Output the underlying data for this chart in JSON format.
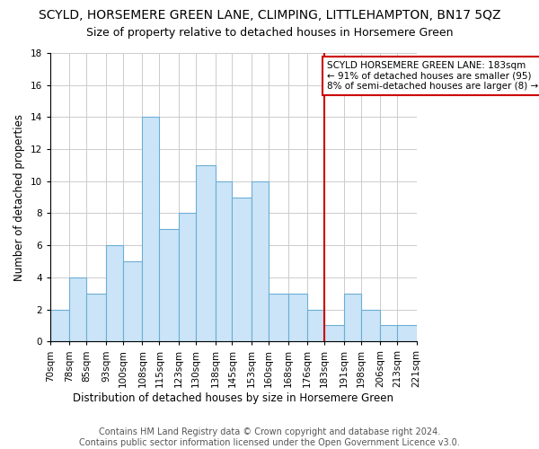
{
  "title": "SCYLD, HORSEMERE GREEN LANE, CLIMPING, LITTLEHAMPTON, BN17 5QZ",
  "subtitle": "Size of property relative to detached houses in Horsemere Green",
  "xlabel": "Distribution of detached houses by size in Horsemere Green",
  "ylabel": "Number of detached properties",
  "footnote1": "Contains HM Land Registry data © Crown copyright and database right 2024.",
  "footnote2": "Contains public sector information licensed under the Open Government Licence v3.0.",
  "bin_edges": [
    70,
    78,
    85,
    93,
    100,
    108,
    115,
    123,
    130,
    138,
    145,
    153,
    160,
    168,
    176,
    183,
    191,
    198,
    206,
    213,
    221
  ],
  "counts": [
    2,
    4,
    3,
    6,
    5,
    14,
    7,
    8,
    11,
    10,
    9,
    10,
    3,
    3,
    2,
    1,
    3,
    2,
    1,
    1
  ],
  "bar_facecolor": "#cce4f7",
  "bar_edgecolor": "#6aaed6",
  "grid_color": "#cccccc",
  "vline_x": 183,
  "vline_color": "#cc0000",
  "annotation_box_text": "SCYLD HORSEMERE GREEN LANE: 183sqm\n← 91% of detached houses are smaller (95)\n8% of semi-detached houses are larger (8) →",
  "annotation_box_color": "#cc0000",
  "ylim": [
    0,
    18
  ],
  "yticks": [
    0,
    2,
    4,
    6,
    8,
    10,
    12,
    14,
    16,
    18
  ],
  "tick_labels": [
    "70sqm",
    "78sqm",
    "85sqm",
    "93sqm",
    "100sqm",
    "108sqm",
    "115sqm",
    "123sqm",
    "130sqm",
    "138sqm",
    "145sqm",
    "153sqm",
    "160sqm",
    "168sqm",
    "176sqm",
    "183sqm",
    "191sqm",
    "198sqm",
    "206sqm",
    "213sqm",
    "221sqm"
  ],
  "title_fontsize": 10,
  "subtitle_fontsize": 9,
  "axis_label_fontsize": 8.5,
  "tick_fontsize": 7.5,
  "footnote_fontsize": 7,
  "annot_fontsize": 7.5
}
